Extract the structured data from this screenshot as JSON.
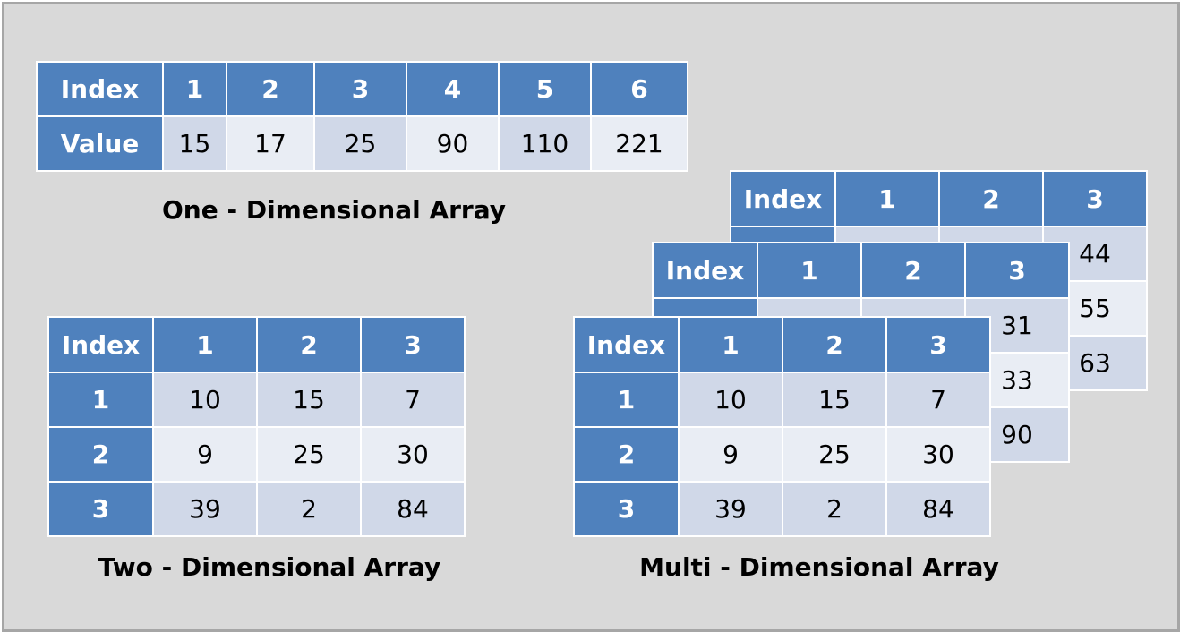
{
  "one_d": {
    "header_label": "Index",
    "value_label": "Value",
    "indices": [
      "1",
      "2",
      "3",
      "4",
      "5",
      "6"
    ],
    "values": [
      "15",
      "17",
      "25",
      "90",
      "110",
      "221"
    ],
    "caption": "One - Dimensional Array"
  },
  "two_d": {
    "corner": "Index",
    "columns": [
      "1",
      "2",
      "3"
    ],
    "rows": [
      {
        "index": "1",
        "cells": [
          "10",
          "15",
          "7"
        ]
      },
      {
        "index": "2",
        "cells": [
          "9",
          "25",
          "30"
        ]
      },
      {
        "index": "3",
        "cells": [
          "39",
          "2",
          "84"
        ]
      }
    ],
    "caption": "Two - Dimensional Array"
  },
  "multi_d": {
    "caption": "Multi - Dimensional Array",
    "back_layer": {
      "corner": "Index",
      "columns": [
        "1",
        "2",
        "3"
      ],
      "visible_last_column": [
        "44",
        "55",
        "63"
      ]
    },
    "middle_layer": {
      "corner": "Index",
      "columns": [
        "1",
        "2",
        "3"
      ],
      "visible_last_column": [
        "31",
        "33",
        "90"
      ]
    },
    "front_layer": {
      "corner": "Index",
      "columns": [
        "1",
        "2",
        "3"
      ],
      "rows": [
        {
          "index": "1",
          "cells": [
            "10",
            "15",
            "7"
          ]
        },
        {
          "index": "2",
          "cells": [
            "9",
            "25",
            "30"
          ]
        },
        {
          "index": "3",
          "cells": [
            "39",
            "2",
            "84"
          ]
        }
      ]
    }
  },
  "colors": {
    "header_blue": "#4f81bd",
    "cell_dark": "#d0d8e8",
    "cell_light": "#e9edf4",
    "background": "#d9d9d9",
    "border": "#a6a6a6"
  }
}
